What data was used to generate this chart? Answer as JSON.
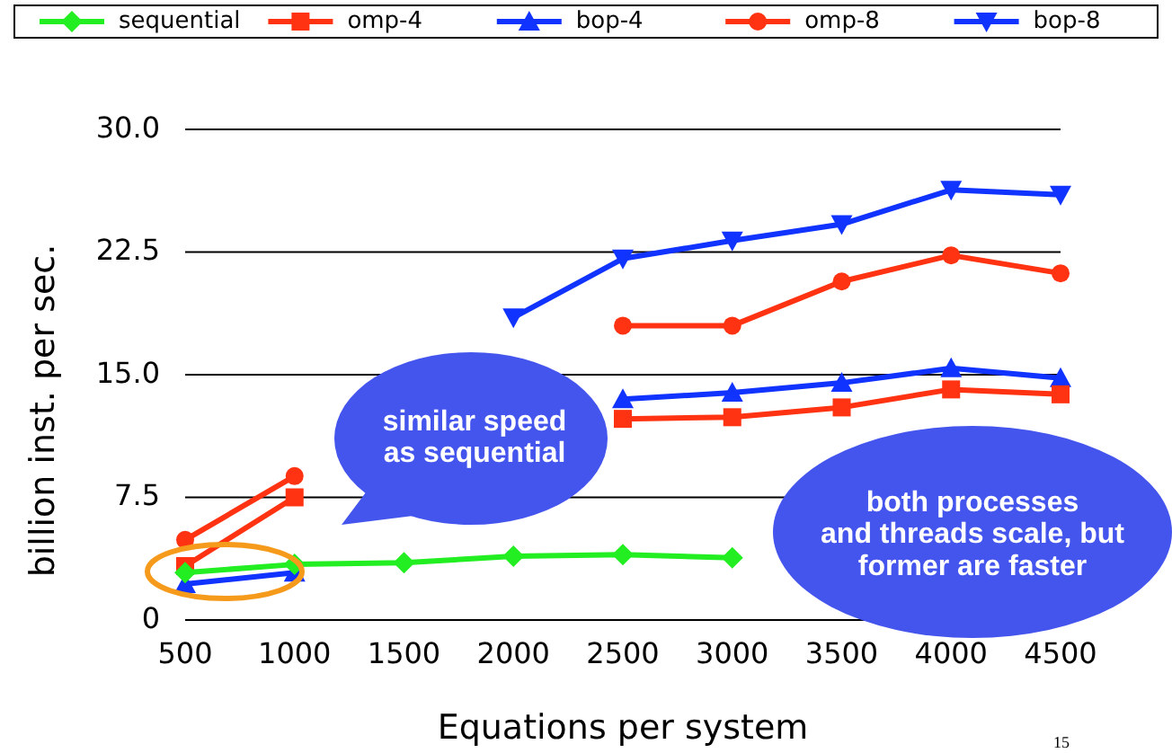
{
  "chart_data": {
    "type": "line",
    "xlabel": "Equations per system",
    "ylabel": "billion inst. per sec.",
    "x": [
      500,
      1000,
      1500,
      2000,
      2500,
      3000,
      3500,
      4000,
      4500
    ],
    "xlim": [
      500,
      4500
    ],
    "xticks": [
      500,
      1000,
      1500,
      2000,
      2500,
      3000,
      3500,
      4000,
      4500
    ],
    "ylim": [
      0,
      30
    ],
    "yticks": [
      0,
      {
        "value": 7.5,
        "label": "7.5"
      },
      {
        "value": 15,
        "label": "15.0"
      },
      {
        "value": 22.5,
        "label": "22.5"
      },
      {
        "value": 30,
        "label": "30.0"
      }
    ],
    "grid": "y",
    "legend": "top",
    "series": [
      {
        "name": "sequential",
        "color": "#22ee22",
        "marker": "diamond",
        "values": [
          2.9,
          3.4,
          3.5,
          3.9,
          4.0,
          3.8,
          null,
          null,
          null
        ]
      },
      {
        "name": "omp-4",
        "color": "#ff3311",
        "marker": "square",
        "values": [
          3.3,
          7.5,
          null,
          null,
          12.3,
          12.4,
          13.0,
          14.1,
          13.8
        ]
      },
      {
        "name": "bop-4",
        "color": "#1133ff",
        "marker": "triangle",
        "values": [
          2.2,
          2.9,
          null,
          null,
          13.5,
          13.9,
          14.5,
          15.4,
          14.8
        ]
      },
      {
        "name": "omp-8",
        "color": "#ff3311",
        "marker": "circle",
        "values": [
          4.9,
          8.8,
          null,
          null,
          18.0,
          18.0,
          20.7,
          22.3,
          21.2
        ]
      },
      {
        "name": "bop-8",
        "color": "#1133ff",
        "marker": "triangle-down",
        "values": [
          null,
          null,
          null,
          18.5,
          22.1,
          23.2,
          24.2,
          26.3,
          26.0
        ]
      }
    ],
    "annotations": [
      "similar speed\nas sequential",
      "both processes\nand threads scale, but\nformer are faster",
      "15"
    ]
  }
}
